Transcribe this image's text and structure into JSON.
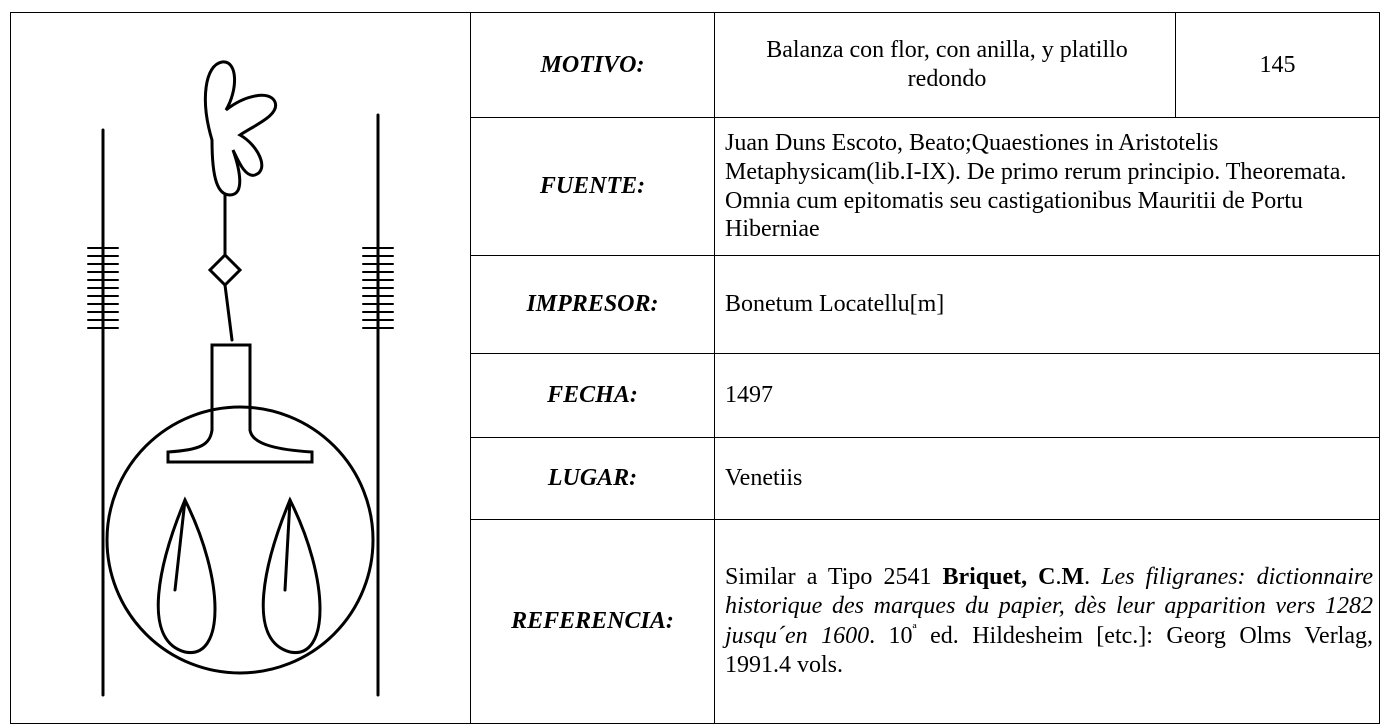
{
  "table": {
    "motivo": {
      "label": "MOTIVO:",
      "value": "Balanza con flor, con anilla, y platillo redondo",
      "number": "145"
    },
    "rows": [
      {
        "label": "FUENTE:",
        "value": "Juan Duns Escoto, Beato;Quaestiones in Aristotelis Metaphysicam(lib.I-IX). De primo rerum principio. Theoremata. Omnia cum epitomatis seu castigationibus Mauritii de Portu Hiberniae"
      },
      {
        "label": "IMPRESOR:",
        "value": "Bonetum Locatellu[m]"
      },
      {
        "label": "FECHA:",
        "value": "1497"
      },
      {
        "label": "LUGAR:",
        "value": "Venetiis"
      }
    ],
    "referencia": {
      "label": "REFERENCIA:",
      "segments": [
        {
          "text": "Similar a Tipo 2541 "
        },
        {
          "text": "Briquet, C",
          "style": "bold"
        },
        {
          "text": "."
        },
        {
          "text": "M",
          "style": "bold"
        },
        {
          "text": ". "
        },
        {
          "text": "Les filigranes: dictionnaire historique des marques du papier, dès leur apparition vers 1282 jusqu´en 1600",
          "style": "italic"
        },
        {
          "text": ". 10"
        },
        {
          "text": "ª",
          "style": "sup"
        },
        {
          "text": " ed. Hildesheim [etc.]: Georg Olms Verlag, 1991.4 vols."
        }
      ]
    }
  }
}
